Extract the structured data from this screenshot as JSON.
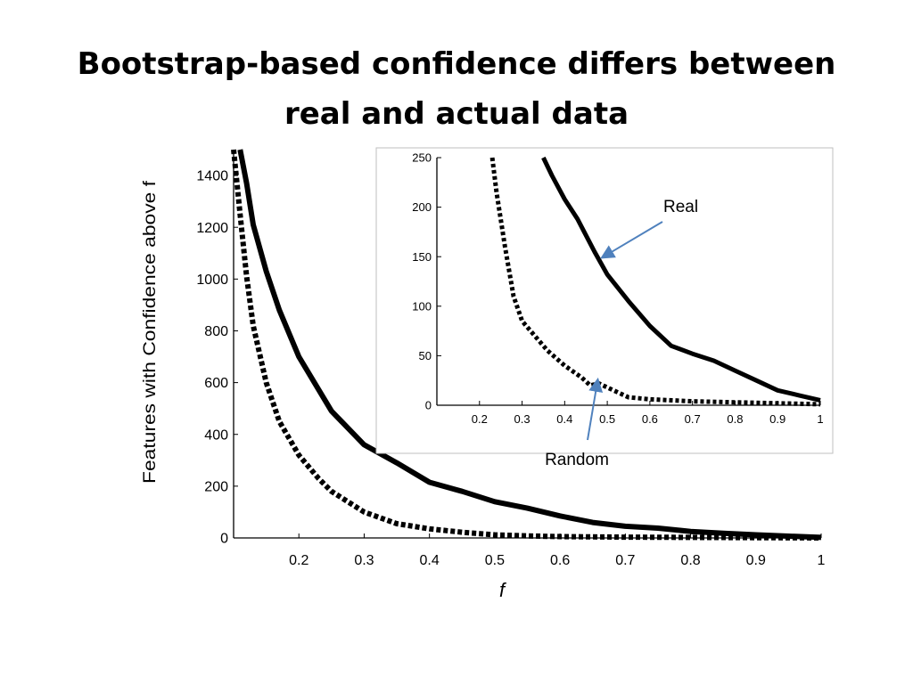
{
  "slide": {
    "title_line1": "Bootstrap-based confidence differs between",
    "title_line2": "real and actual data"
  },
  "colors": {
    "curve": "#000000",
    "arrow": "#4f81bd",
    "axis": "#000000",
    "background": "#ffffff"
  },
  "chart_data": [
    {
      "type": "line",
      "title": "",
      "xlabel": "f",
      "ylabel": "Features with Confidence above  f",
      "xlim": [
        0.1,
        1.0
      ],
      "ylim": [
        0,
        1500
      ],
      "xticks": [
        0.2,
        0.3,
        0.4,
        0.5,
        0.6,
        0.7,
        0.8,
        0.9,
        1
      ],
      "xtick_labels": [
        "0.2",
        "0.3",
        "0.4",
        "0.5",
        "0.6",
        "0.7",
        "0.8",
        "0.9",
        "1"
      ],
      "yticks": [
        0,
        200,
        400,
        600,
        800,
        1000,
        1200,
        1400
      ],
      "ytick_labels": [
        "0",
        "200",
        "400",
        "600",
        "800",
        "1000",
        "1200",
        "1400"
      ],
      "grid": false,
      "series": [
        {
          "style": "solid",
          "x": [
            0.11,
            0.12,
            0.13,
            0.15,
            0.17,
            0.2,
            0.25,
            0.3,
            0.35,
            0.4,
            0.45,
            0.5,
            0.55,
            0.6,
            0.65,
            0.7,
            0.75,
            0.8,
            0.85,
            0.9,
            0.95,
            1.0
          ],
          "y": [
            1500,
            1370,
            1210,
            1030,
            880,
            700,
            490,
            360,
            290,
            215,
            180,
            140,
            115,
            85,
            60,
            45,
            38,
            25,
            18,
            12,
            7,
            2
          ]
        },
        {
          "style": "dotted",
          "x": [
            0.1,
            0.11,
            0.12,
            0.13,
            0.15,
            0.17,
            0.2,
            0.23,
            0.25,
            0.3,
            0.35,
            0.4,
            0.45,
            0.5,
            0.55,
            0.6,
            0.7,
            0.8,
            0.9,
            1.0
          ],
          "y": [
            1500,
            1250,
            1010,
            820,
            600,
            450,
            320,
            230,
            180,
            100,
            55,
            35,
            22,
            12,
            8,
            5,
            3,
            2,
            1,
            0
          ]
        }
      ]
    },
    {
      "type": "line",
      "title": "",
      "xlabel": "",
      "ylabel": "",
      "xlim": [
        0.1,
        1.0
      ],
      "ylim": [
        0,
        250
      ],
      "xticks": [
        0.2,
        0.3,
        0.4,
        0.5,
        0.6,
        0.7,
        0.8,
        0.9,
        1
      ],
      "xtick_labels": [
        "0.2",
        "0.3",
        "0.4",
        "0.5",
        "0.6",
        "0.7",
        "0.8",
        "0.9",
        "1"
      ],
      "yticks": [
        0,
        50,
        100,
        150,
        200,
        250
      ],
      "ytick_labels": [
        "0",
        "50",
        "100",
        "150",
        "200",
        "250"
      ],
      "grid": false,
      "series": [
        {
          "name": "Real",
          "style": "solid",
          "x": [
            0.35,
            0.37,
            0.4,
            0.43,
            0.47,
            0.5,
            0.55,
            0.6,
            0.65,
            0.7,
            0.75,
            0.8,
            0.85,
            0.9,
            0.95,
            1.0
          ],
          "y": [
            250,
            232,
            208,
            188,
            155,
            132,
            105,
            80,
            60,
            52,
            45,
            35,
            25,
            15,
            10,
            5
          ]
        },
        {
          "name": "Random",
          "style": "dotted",
          "x": [
            0.23,
            0.24,
            0.26,
            0.28,
            0.3,
            0.33,
            0.36,
            0.4,
            0.44,
            0.46,
            0.48,
            0.5,
            0.53,
            0.55,
            0.6,
            0.7,
            0.8,
            0.9,
            1.0
          ],
          "y": [
            250,
            215,
            160,
            110,
            85,
            70,
            55,
            40,
            28,
            20,
            22,
            18,
            12,
            8,
            6,
            4,
            3,
            2,
            1
          ]
        }
      ],
      "annotations": [
        {
          "text": "Real",
          "points_to": [
            0.48,
            148
          ]
        },
        {
          "text": "Random",
          "points_to": [
            0.475,
            28
          ]
        }
      ]
    }
  ]
}
